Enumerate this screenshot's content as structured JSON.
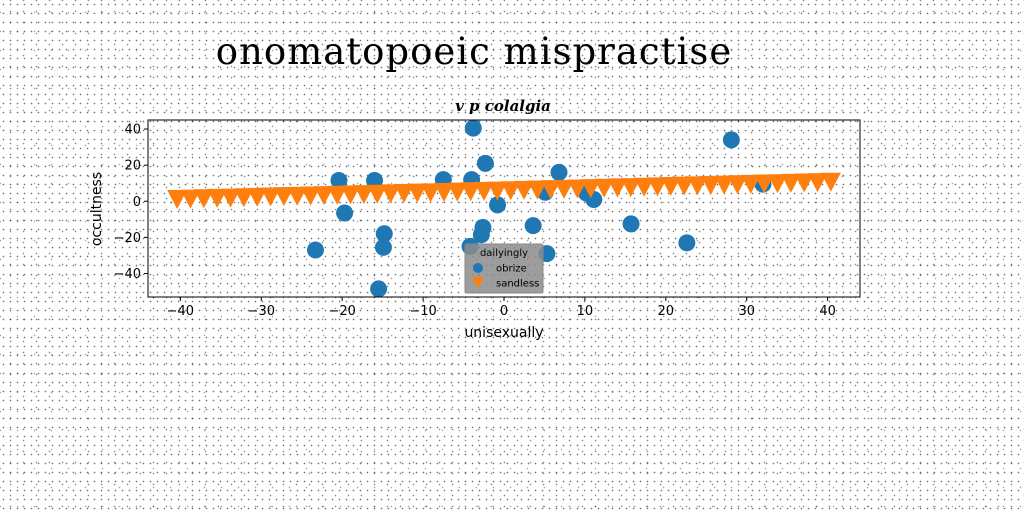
{
  "suptitle": "onomatopoeic mispractise",
  "chart_data": {
    "type": "scatter",
    "title": "v p colalgia",
    "xlabel": "unisexually",
    "ylabel": "occultness",
    "xlim": [
      -44,
      44
    ],
    "ylim": [
      -53,
      45
    ],
    "xticks": [
      -40,
      -30,
      -20,
      -10,
      0,
      10,
      20,
      30,
      40
    ],
    "yticks": [
      -40,
      -20,
      0,
      20,
      40
    ],
    "grid": false,
    "legend": {
      "title": "dailyingly",
      "placement": "lower-center"
    },
    "series": [
      {
        "name": "obrize",
        "marker": "circle",
        "color": "#1f77b4",
        "points": [
          [
            -23.3,
            -27
          ],
          [
            -20.4,
            11.5
          ],
          [
            -19.7,
            -6.5
          ],
          [
            -16,
            11.5
          ],
          [
            -15.5,
            -48.5
          ],
          [
            -14.8,
            -18
          ],
          [
            -14.9,
            -25.5
          ],
          [
            -7.5,
            12
          ],
          [
            -4.2,
            -25
          ],
          [
            -4,
            12
          ],
          [
            -3.8,
            40.5
          ],
          [
            -2.6,
            -14.5
          ],
          [
            -2.8,
            -18.5
          ],
          [
            -2.3,
            21
          ],
          [
            -0.8,
            -2
          ],
          [
            3.6,
            -13.5
          ],
          [
            5.1,
            5
          ],
          [
            5.3,
            -29
          ],
          [
            6.8,
            16
          ],
          [
            10.2,
            4.5
          ],
          [
            11.1,
            1
          ],
          [
            15.7,
            -12.5
          ],
          [
            22.6,
            -23
          ],
          [
            28.1,
            34
          ],
          [
            32,
            9.5
          ]
        ]
      },
      {
        "name": "sandless",
        "marker": "triangle-down",
        "color": "#ff7f0e",
        "line": {
          "x_start": -40.4,
          "x_end": 40.4,
          "y_start": 1,
          "y_end": 10.5,
          "count": 50
        }
      }
    ]
  }
}
